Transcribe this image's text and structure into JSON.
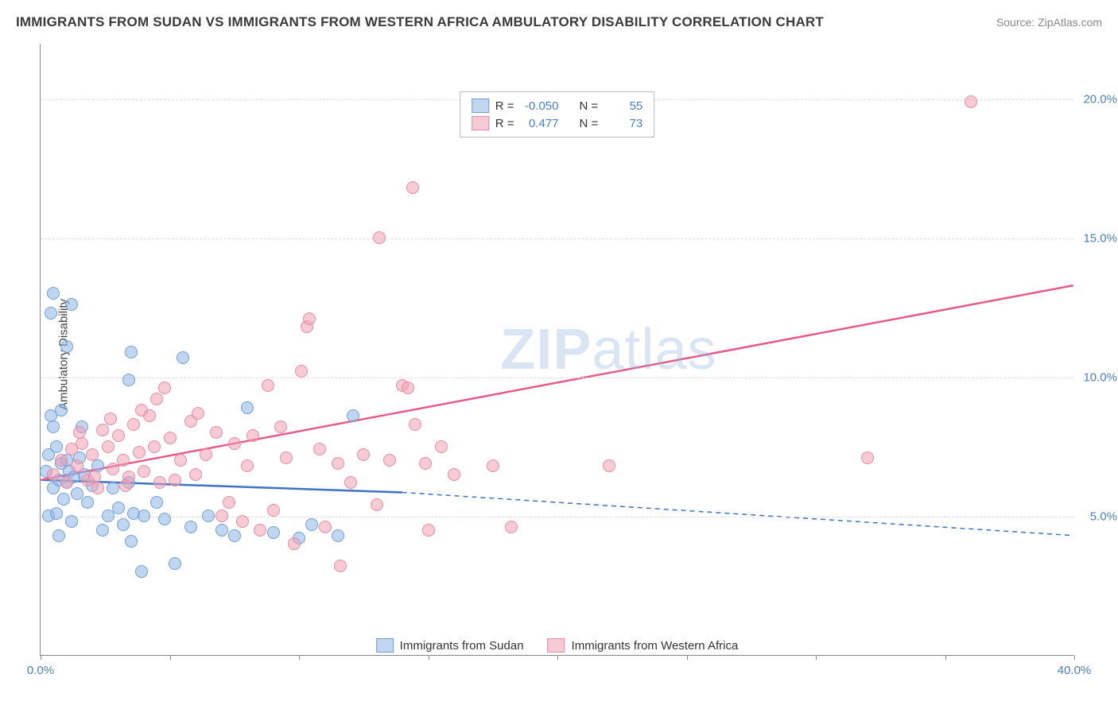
{
  "title": "IMMIGRANTS FROM SUDAN VS IMMIGRANTS FROM WESTERN AFRICA AMBULATORY DISABILITY CORRELATION CHART",
  "source": "Source: ZipAtlas.com",
  "y_axis_label": "Ambulatory Disability",
  "watermark_part1": "ZIP",
  "watermark_part2": "atlas",
  "chart": {
    "type": "scatter",
    "xlim": [
      0,
      40
    ],
    "ylim": [
      0,
      22
    ],
    "y_ticks": [
      5,
      10,
      15,
      20
    ],
    "y_tick_labels": [
      "5.0%",
      "10.0%",
      "15.0%",
      "20.0%"
    ],
    "x_ticks": [
      0,
      5,
      10,
      15,
      20,
      25,
      30,
      35,
      40
    ],
    "x_left_label": "0.0%",
    "x_right_label": "40.0%",
    "grid_color": "#dddddd",
    "axis_color": "#888888",
    "background_color": "#ffffff",
    "marker_size": 16,
    "series": [
      {
        "name": "Immigrants from Sudan",
        "fill": "rgba(140,180,230,0.55)",
        "stroke": "#6da0d8",
        "trend_color": "#3d72c4",
        "R": "-0.050",
        "N": "55",
        "trend": {
          "x1": 0,
          "y1": 6.3,
          "x2_solid": 14,
          "y2_solid": 5.85,
          "x2": 40,
          "y2": 4.3
        },
        "points": [
          [
            0.2,
            6.6
          ],
          [
            0.3,
            7.2
          ],
          [
            0.3,
            5.0
          ],
          [
            0.4,
            8.6
          ],
          [
            0.5,
            6.0
          ],
          [
            0.5,
            8.2
          ],
          [
            0.6,
            5.1
          ],
          [
            0.6,
            7.5
          ],
          [
            0.7,
            6.3
          ],
          [
            0.7,
            4.3
          ],
          [
            0.8,
            6.9
          ],
          [
            0.8,
            8.8
          ],
          [
            0.9,
            5.6
          ],
          [
            1.0,
            6.2
          ],
          [
            1.0,
            7.0
          ],
          [
            1.1,
            6.6
          ],
          [
            1.2,
            4.8
          ],
          [
            1.3,
            6.4
          ],
          [
            1.4,
            5.8
          ],
          [
            1.5,
            7.1
          ],
          [
            1.7,
            6.5
          ],
          [
            1.2,
            12.6
          ],
          [
            1.0,
            11.1
          ],
          [
            0.4,
            12.3
          ],
          [
            0.5,
            13.0
          ],
          [
            1.6,
            8.2
          ],
          [
            1.8,
            5.5
          ],
          [
            2.0,
            6.1
          ],
          [
            2.2,
            6.8
          ],
          [
            2.4,
            4.5
          ],
          [
            2.6,
            5.0
          ],
          [
            2.8,
            6.0
          ],
          [
            3.0,
            5.3
          ],
          [
            3.2,
            4.7
          ],
          [
            3.4,
            6.2
          ],
          [
            3.4,
            9.9
          ],
          [
            3.5,
            10.9
          ],
          [
            3.5,
            4.1
          ],
          [
            3.6,
            5.1
          ],
          [
            3.9,
            3.0
          ],
          [
            4.0,
            5.0
          ],
          [
            4.5,
            5.5
          ],
          [
            4.8,
            4.9
          ],
          [
            5.2,
            3.3
          ],
          [
            5.5,
            10.7
          ],
          [
            5.8,
            4.6
          ],
          [
            6.5,
            5.0
          ],
          [
            7.0,
            4.5
          ],
          [
            7.5,
            4.3
          ],
          [
            8.0,
            8.9
          ],
          [
            9.0,
            4.4
          ],
          [
            10.0,
            4.2
          ],
          [
            10.5,
            4.7
          ],
          [
            11.5,
            4.3
          ],
          [
            12.1,
            8.6
          ]
        ]
      },
      {
        "name": "Immigrants from Western Africa",
        "fill": "rgba(240,160,180,0.55)",
        "stroke": "#e88aa5",
        "trend_color": "#e75a8a",
        "R": "0.477",
        "N": "73",
        "trend": {
          "x1": 0,
          "y1": 6.3,
          "x2_solid": 40,
          "y2_solid": 13.3,
          "x2": 40,
          "y2": 13.3
        },
        "points": [
          [
            0.5,
            6.5
          ],
          [
            0.8,
            7.0
          ],
          [
            1.0,
            6.2
          ],
          [
            1.2,
            7.4
          ],
          [
            1.4,
            6.8
          ],
          [
            1.6,
            7.6
          ],
          [
            1.8,
            6.3
          ],
          [
            2.0,
            7.2
          ],
          [
            2.2,
            6.0
          ],
          [
            2.4,
            8.1
          ],
          [
            2.6,
            7.5
          ],
          [
            2.8,
            6.7
          ],
          [
            3.0,
            7.9
          ],
          [
            3.2,
            7.0
          ],
          [
            3.4,
            6.4
          ],
          [
            3.6,
            8.3
          ],
          [
            3.8,
            7.3
          ],
          [
            4.0,
            6.6
          ],
          [
            4.2,
            8.6
          ],
          [
            4.4,
            7.5
          ],
          [
            4.6,
            6.2
          ],
          [
            4.8,
            9.6
          ],
          [
            5.0,
            7.8
          ],
          [
            5.4,
            7.0
          ],
          [
            5.8,
            8.4
          ],
          [
            6.0,
            6.5
          ],
          [
            6.4,
            7.2
          ],
          [
            6.8,
            8.0
          ],
          [
            7.0,
            5.0
          ],
          [
            7.5,
            7.6
          ],
          [
            7.8,
            4.8
          ],
          [
            8.0,
            6.8
          ],
          [
            8.5,
            4.5
          ],
          [
            8.8,
            9.7
          ],
          [
            9.0,
            5.2
          ],
          [
            9.5,
            7.1
          ],
          [
            9.8,
            4.0
          ],
          [
            10.1,
            10.2
          ],
          [
            10.3,
            11.8
          ],
          [
            10.4,
            12.1
          ],
          [
            10.8,
            7.4
          ],
          [
            11.0,
            4.6
          ],
          [
            11.5,
            6.9
          ],
          [
            11.6,
            3.2
          ],
          [
            12.5,
            7.2
          ],
          [
            13.1,
            15.0
          ],
          [
            13.5,
            7.0
          ],
          [
            14.0,
            9.7
          ],
          [
            14.2,
            9.6
          ],
          [
            14.4,
            16.8
          ],
          [
            14.9,
            6.9
          ],
          [
            15.0,
            4.5
          ],
          [
            15.5,
            7.5
          ],
          [
            16.0,
            6.5
          ],
          [
            17.5,
            6.8
          ],
          [
            18.2,
            4.6
          ],
          [
            22.0,
            6.8
          ],
          [
            32.0,
            7.1
          ],
          [
            36.0,
            19.9
          ],
          [
            1.5,
            8.0
          ],
          [
            2.1,
            6.4
          ],
          [
            2.7,
            8.5
          ],
          [
            3.3,
            6.1
          ],
          [
            3.9,
            8.8
          ],
          [
            4.5,
            9.2
          ],
          [
            5.2,
            6.3
          ],
          [
            6.1,
            8.7
          ],
          [
            7.3,
            5.5
          ],
          [
            8.2,
            7.9
          ],
          [
            9.3,
            8.2
          ],
          [
            12.0,
            6.2
          ],
          [
            13.0,
            5.4
          ],
          [
            14.5,
            8.3
          ]
        ]
      }
    ]
  },
  "legend_top": {
    "r_label": "R =",
    "n_label": "N ="
  }
}
